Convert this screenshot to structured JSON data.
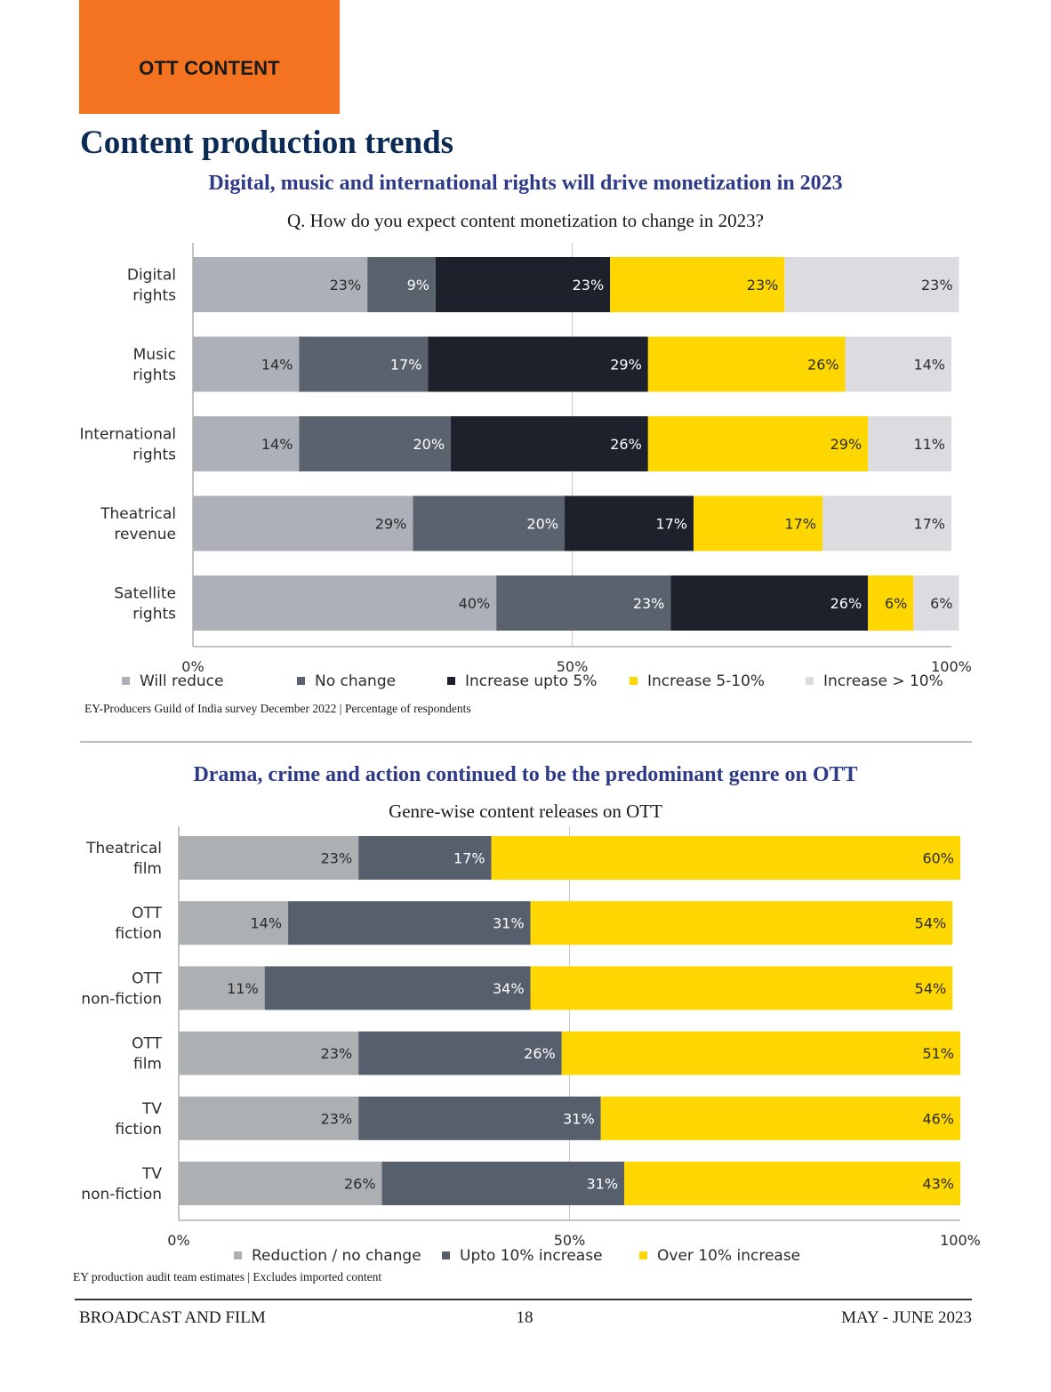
{
  "section_tag": "OTT CONTENT",
  "page_title": "Content production trends",
  "chart_data": [
    {
      "type": "bar",
      "orientation": "horizontal",
      "stacked": true,
      "title": "Digital, music and international rights will drive monetization in 2023",
      "subtitle": "Q. How do you expect content monetization to change in 2023?",
      "categories": [
        "Digital rights",
        "Music rights",
        "International rights",
        "Theatrical revenue",
        "Satellite rights"
      ],
      "category_lines": [
        [
          "Digital",
          "rights"
        ],
        [
          "Music",
          "rights"
        ],
        [
          "International",
          "rights"
        ],
        [
          "Theatrical",
          "revenue"
        ],
        [
          "Satellite",
          "rights"
        ]
      ],
      "series": [
        {
          "name": "Will reduce",
          "color": "#adb0b8",
          "label_color": "#2b2b2b",
          "values": [
            23,
            14,
            14,
            29,
            40
          ]
        },
        {
          "name": "No change",
          "color": "#5a626e",
          "label_color": "#ffffff",
          "values": [
            9,
            17,
            20,
            20,
            23
          ]
        },
        {
          "name": "Increase upto 5%",
          "color": "#1c212b",
          "label_color": "#ffffff",
          "values": [
            23,
            29,
            26,
            17,
            26
          ]
        },
        {
          "name": "Increase 5-10%",
          "color": "#ffd700",
          "label_color": "#2b2b2b",
          "values": [
            23,
            26,
            29,
            17,
            6
          ]
        },
        {
          "name": "Increase > 10%",
          "color": "#dcdbe0",
          "label_color": "#2b2b2b",
          "values": [
            23,
            14,
            11,
            17,
            6
          ]
        }
      ],
      "xlim": [
        0,
        100
      ],
      "x_ticks": [
        "0%",
        "50%",
        "100%"
      ],
      "legend_position": "bottom",
      "source": "EY-Producers Guild of India survey December 2022 | Percentage of respondents"
    },
    {
      "type": "bar",
      "orientation": "horizontal",
      "stacked": true,
      "title": "Drama, crime and action continued to be the predominant genre on OTT",
      "subtitle": "Genre-wise content releases on OTT",
      "categories": [
        "Theatrical film",
        "OTT fiction",
        "OTT non-fiction",
        "OTT film",
        "TV fiction",
        "TV non-fiction"
      ],
      "category_lines": [
        [
          "Theatrical",
          "film"
        ],
        [
          "OTT",
          "fiction"
        ],
        [
          "OTT",
          "non-fiction"
        ],
        [
          "OTT",
          "film"
        ],
        [
          "TV",
          "fiction"
        ],
        [
          "TV",
          "non-fiction"
        ]
      ],
      "series": [
        {
          "name": "Reduction / no change",
          "color": "#adb0b3",
          "label_color": "#2b2b2b",
          "values": [
            23,
            14,
            11,
            23,
            23,
            26
          ]
        },
        {
          "name": "Upto 10% increase",
          "color": "#575f6c",
          "label_color": "#ffffff",
          "values": [
            17,
            31,
            34,
            26,
            31,
            31
          ]
        },
        {
          "name": "Over 10% increase",
          "color": "#ffd700",
          "label_color": "#2b2b2b",
          "values": [
            60,
            54,
            54,
            51,
            46,
            43
          ]
        }
      ],
      "xlim": [
        0,
        100
      ],
      "x_ticks": [
        "0%",
        "50%",
        "100%"
      ],
      "legend_position": "bottom",
      "source": "EY production audit team estimates | Excludes imported content"
    }
  ],
  "footer": {
    "left": "BROADCAST AND FILM",
    "page_number": "18",
    "right": "MAY - JUNE 2023"
  }
}
